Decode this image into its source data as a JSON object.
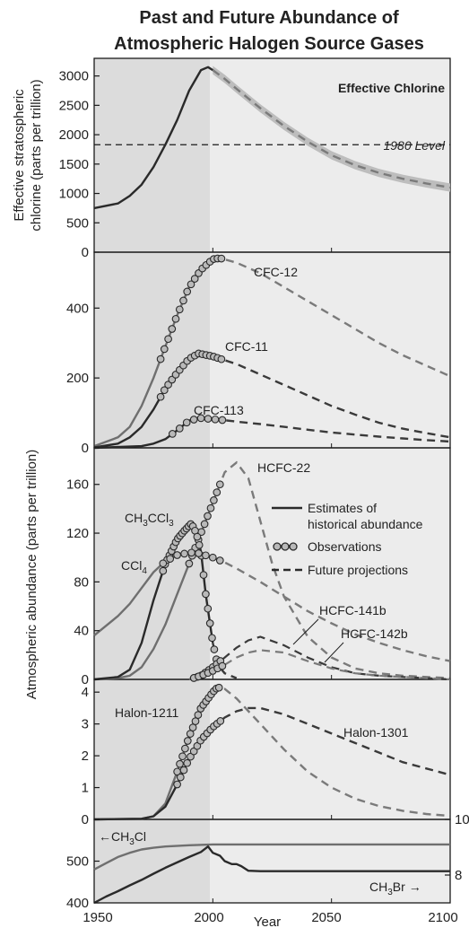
{
  "title_line1": "Past and Future Abundance of",
  "title_line2": "Atmospheric Halogen Source Gases",
  "xlabel": "Year",
  "ylabel_top_line1": "Effective stratospheric",
  "ylabel_top_line2": "chlorine (parts per trillion)",
  "ylabel_main": "Atmospheric abundance (parts per trillion)",
  "legend": {
    "estimates_line1": "Estimates of",
    "estimates_line2": "historical abundance",
    "observations": "Observations",
    "projections": "Future projections"
  },
  "colors": {
    "dark_line": "#2a2a2a",
    "gray_line": "#6f6f6f",
    "projection_dark": "#3a3a3a",
    "projection_gray": "#7a7a7a",
    "observation_fill": "#b9b9b9",
    "shade_past": "#dcdcdc",
    "shade_future": "#ececec"
  },
  "chart_data": [
    {
      "type": "line",
      "panel": "effective-chlorine",
      "xlim": [
        1950,
        2100
      ],
      "ylim": [
        0,
        3300
      ],
      "yticks": [
        0,
        500,
        1000,
        1500,
        2000,
        2500,
        3000
      ],
      "annotations": [
        "Effective Chlorine",
        "1980 Level"
      ],
      "reference_level": 1830,
      "series": [
        {
          "name": "Effective Chlorine",
          "x": [
            1950,
            1960,
            1965,
            1970,
            1975,
            1980,
            1985,
            1990,
            1995,
            1998,
            2000,
            2005,
            2010,
            2020,
            2030,
            2040,
            2050,
            2060,
            2070,
            2080,
            2090,
            2100
          ],
          "y": [
            750,
            830,
            960,
            1150,
            1450,
            1830,
            2250,
            2750,
            3100,
            3150,
            3100,
            2950,
            2780,
            2450,
            2150,
            1880,
            1650,
            1480,
            1350,
            1250,
            1170,
            1100
          ]
        }
      ]
    },
    {
      "type": "line",
      "panel": "cfcs",
      "xlim": [
        1950,
        2100
      ],
      "ylim": [
        0,
        560
      ],
      "yticks": [
        0,
        200,
        400
      ],
      "series": [
        {
          "name": "CFC-12",
          "x": [
            1950,
            1960,
            1965,
            1970,
            1975,
            1980,
            1985,
            1990,
            1995,
            2000,
            2003,
            2010,
            2020,
            2030,
            2040,
            2050,
            2060,
            2070,
            2080,
            2090,
            2100
          ],
          "y": [
            5,
            30,
            60,
            120,
            200,
            290,
            380,
            460,
            510,
            540,
            543,
            530,
            500,
            460,
            420,
            380,
            340,
            300,
            265,
            235,
            205
          ]
        },
        {
          "name": "CFC-11",
          "x": [
            1950,
            1960,
            1965,
            1970,
            1975,
            1980,
            1985,
            1990,
            1994,
            2000,
            2003,
            2010,
            2020,
            2030,
            2040,
            2050,
            2060,
            2070,
            2080,
            2090,
            2100
          ],
          "y": [
            1,
            12,
            30,
            60,
            110,
            170,
            215,
            255,
            270,
            262,
            255,
            240,
            210,
            180,
            150,
            120,
            95,
            72,
            55,
            42,
            30
          ]
        },
        {
          "name": "CFC-113",
          "x": [
            1950,
            1970,
            1975,
            1980,
            1985,
            1990,
            1995,
            2000,
            2005,
            2010,
            2020,
            2030,
            2040,
            2050,
            2060,
            2070,
            2080,
            2090,
            2100
          ],
          "y": [
            0,
            5,
            12,
            25,
            50,
            78,
            85,
            82,
            79,
            75,
            68,
            60,
            52,
            44,
            38,
            32,
            27,
            22,
            18
          ]
        }
      ]
    },
    {
      "type": "line",
      "panel": "hcfcs-and-solvents",
      "xlim": [
        1950,
        2100
      ],
      "ylim": [
        0,
        190
      ],
      "yticks": [
        0,
        40,
        80,
        120,
        160
      ],
      "series": [
        {
          "name": "HCFC-22",
          "x": [
            1950,
            1960,
            1965,
            1970,
            1975,
            1980,
            1985,
            1990,
            1995,
            2000,
            2005,
            2010,
            2015,
            2020,
            2025,
            2030,
            2040,
            2050,
            2060,
            2070,
            2080,
            2090,
            2100
          ],
          "y": [
            0,
            1,
            3,
            10,
            25,
            45,
            70,
            95,
            120,
            145,
            170,
            178,
            165,
            130,
            95,
            68,
            35,
            18,
            9,
            5,
            3,
            2,
            1
          ]
        },
        {
          "name": "CH3CCl3",
          "x": [
            1950,
            1960,
            1965,
            1970,
            1975,
            1980,
            1985,
            1988,
            1991,
            1993,
            1995,
            1997,
            2000,
            2002,
            2005,
            2010
          ],
          "y": [
            0,
            2,
            8,
            30,
            65,
            95,
            115,
            122,
            128,
            120,
            105,
            70,
            30,
            12,
            5,
            1
          ]
        },
        {
          "name": "CCl4",
          "x": [
            1950,
            1960,
            1965,
            1970,
            1975,
            1980,
            1985,
            1990,
            1993,
            1995,
            2000,
            2005,
            2010,
            2020,
            2030,
            2040,
            2050,
            2060,
            2070,
            2080,
            2090,
            2100
          ],
          "y": [
            36,
            52,
            62,
            75,
            88,
            97,
            102,
            104,
            104,
            103,
            100,
            96,
            91,
            80,
            68,
            56,
            46,
            37,
            30,
            24,
            19,
            15
          ]
        },
        {
          "name": "HCFC-141b",
          "x": [
            1990,
            1995,
            2000,
            2005,
            2010,
            2015,
            2020,
            2030,
            2040,
            2050,
            2060,
            2070,
            2080,
            2090,
            2100
          ],
          "y": [
            0,
            3,
            10,
            18,
            26,
            32,
            35,
            28,
            18,
            10,
            5,
            3,
            2,
            1,
            0
          ]
        },
        {
          "name": "HCFC-142b",
          "x": [
            1990,
            1995,
            2000,
            2005,
            2010,
            2015,
            2020,
            2030,
            2040,
            2050,
            2060,
            2070,
            2080,
            2090,
            2100
          ],
          "y": [
            0,
            3,
            7,
            12,
            18,
            22,
            24,
            22,
            15,
            9,
            5,
            3,
            2,
            1,
            0
          ]
        }
      ]
    },
    {
      "type": "line",
      "panel": "halons",
      "xlim": [
        1950,
        2100
      ],
      "ylim": [
        0,
        4.4
      ],
      "yticks": [
        0,
        1,
        2,
        3,
        4
      ],
      "series": [
        {
          "name": "Halon-1211",
          "x": [
            1950,
            1970,
            1975,
            1980,
            1985,
            1990,
            1995,
            2000,
            2002,
            2005,
            2010,
            2020,
            2030,
            2040,
            2050,
            2060,
            2070,
            2080,
            2090,
            2100
          ],
          "y": [
            0,
            0.02,
            0.1,
            0.5,
            1.5,
            2.6,
            3.5,
            4.0,
            4.15,
            4.1,
            3.8,
            3.0,
            2.2,
            1.5,
            1.0,
            0.65,
            0.42,
            0.27,
            0.17,
            0.11
          ]
        },
        {
          "name": "Halon-1301",
          "x": [
            1950,
            1970,
            1975,
            1980,
            1985,
            1990,
            1995,
            2000,
            2005,
            2010,
            2015,
            2020,
            2030,
            2040,
            2050,
            2060,
            2070,
            2080,
            2090,
            2100
          ],
          "y": [
            0,
            0.02,
            0.1,
            0.4,
            1.1,
            1.9,
            2.5,
            2.9,
            3.2,
            3.4,
            3.5,
            3.5,
            3.3,
            3.0,
            2.7,
            2.4,
            2.1,
            1.8,
            1.6,
            1.4
          ]
        }
      ]
    },
    {
      "type": "line",
      "panel": "methyl-halides",
      "xlim": [
        1950,
        2100
      ],
      "ylim": [
        400,
        600
      ],
      "yticks": [
        400,
        500
      ],
      "right_yticks": [
        8,
        10
      ],
      "series": [
        {
          "name": "CH3Cl",
          "x": [
            1950,
            1955,
            1960,
            1965,
            1970,
            1975,
            1980,
            1990,
            2000,
            2010,
            2020,
            2050,
            2100
          ],
          "y": [
            480,
            495,
            510,
            520,
            528,
            532,
            535,
            538,
            540,
            540,
            540,
            540,
            540
          ]
        },
        {
          "name": "CH3Br",
          "x": [
            1950,
            1955,
            1960,
            1965,
            1970,
            1975,
            1980,
            1985,
            1990,
            1995,
            1998,
            2000,
            2003,
            2005,
            2008,
            2010,
            2012,
            2015,
            2020,
            2050,
            2100
          ],
          "y": [
            400,
            415,
            428,
            442,
            455,
            470,
            484,
            497,
            510,
            522,
            535,
            520,
            513,
            500,
            493,
            493,
            488,
            477,
            476,
            476,
            476
          ]
        }
      ]
    }
  ],
  "labels": {
    "effective_chlorine": "Effective Chlorine",
    "level_1980": "1980 Level",
    "cfc12": "CFC-12",
    "cfc11": "CFC-11",
    "cfc113": "CFC-113",
    "hcfc22": "HCFC-22",
    "ch3ccl3_a": "CH",
    "ch3ccl3_s1": "3",
    "ch3ccl3_b": "CCl",
    "ch3ccl3_s2": "3",
    "ccl4_a": "CCl",
    "ccl4_s": "4",
    "hcfc141b": "HCFC-141b",
    "hcfc142b": "HCFC-142b",
    "halon1211": "Halon-1211",
    "halon1301": "Halon-1301",
    "ch3cl_arrow": "←",
    "ch3cl_a": "CH",
    "ch3cl_s": "3",
    "ch3cl_b": "Cl",
    "ch3br_a": "CH",
    "ch3br_s": "3",
    "ch3br_b": "Br",
    "ch3br_arrow": "→"
  },
  "x_ticks": [
    "1950",
    "2000",
    "2050",
    "2100"
  ],
  "right_ticks": [
    "10",
    "8"
  ]
}
